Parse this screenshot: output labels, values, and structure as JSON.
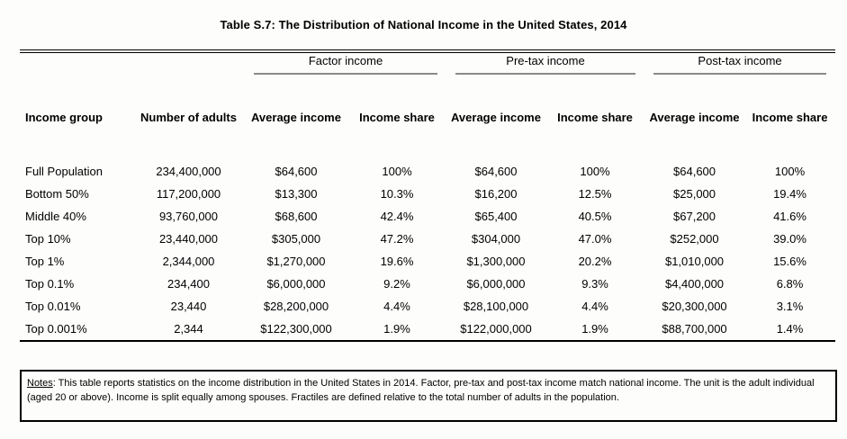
{
  "title": "Table S.7: The Distribution of National Income in the United States, 2014",
  "table": {
    "spanners": [
      {
        "label": "Factor income"
      },
      {
        "label": "Pre-tax income"
      },
      {
        "label": "Post-tax income"
      }
    ],
    "columns": [
      "Income group",
      "Number of adults",
      "Average income",
      "Income share",
      "Average income",
      "Income share",
      "Average income",
      "Income share"
    ],
    "rows": [
      [
        "Full Population",
        "234,400,000",
        "$64,600",
        "100%",
        "$64,600",
        "100%",
        "$64,600",
        "100%"
      ],
      [
        "Bottom 50%",
        "117,200,000",
        "$13,300",
        "10.3%",
        "$16,200",
        "12.5%",
        "$25,000",
        "19.4%"
      ],
      [
        "Middle 40%",
        "93,760,000",
        "$68,600",
        "42.4%",
        "$65,400",
        "40.5%",
        "$67,200",
        "41.6%"
      ],
      [
        "Top 10%",
        "23,440,000",
        "$305,000",
        "47.2%",
        "$304,000",
        "47.0%",
        "$252,000",
        "39.0%"
      ],
      [
        "Top 1%",
        "2,344,000",
        "$1,270,000",
        "19.6%",
        "$1,300,000",
        "20.2%",
        "$1,010,000",
        "15.6%"
      ],
      [
        "Top 0.1%",
        "234,400",
        "$6,000,000",
        "9.2%",
        "$6,000,000",
        "9.3%",
        "$4,400,000",
        "6.8%"
      ],
      [
        "Top 0.01%",
        "23,440",
        "$28,200,000",
        "4.4%",
        "$28,100,000",
        "4.4%",
        "$20,300,000",
        "3.1%"
      ],
      [
        "Top 0.001%",
        "2,344",
        "$122,300,000",
        "1.9%",
        "$122,000,000",
        "1.9%",
        "$88,700,000",
        "1.4%"
      ]
    ]
  },
  "notes": {
    "label": "Notes",
    "text": ": This table reports statistics on the income distribution in the United States in 2014. Factor, pre-tax and post-tax income match national income.  The unit is the adult individual (aged 20 or above). Income is split equally among spouses. Fractiles are defined relative to the total number of adults in the population."
  },
  "colors": {
    "rule": "#000000",
    "spanner_underline": "#8a8a8a",
    "background": "#fdfdfc"
  }
}
